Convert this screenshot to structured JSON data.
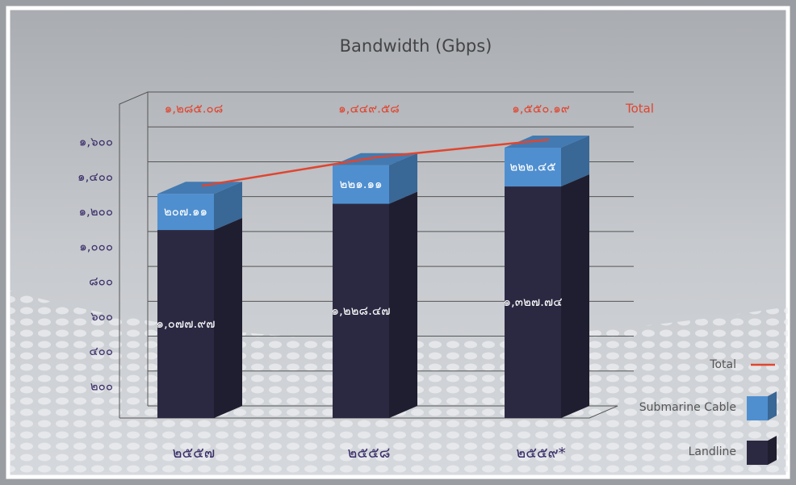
{
  "chart_data": {
    "type": "bar",
    "stacked": true,
    "title": "Bandwidth (Gbps)",
    "categories": [
      "๒๕๕๗",
      "๒๕๕๘",
      "๒๕๕๙*"
    ],
    "series": [
      {
        "name": "Landline",
        "color": "#2b2942",
        "values": [
          1077.97,
          1228.47,
          1327.74
        ],
        "value_labels": [
          "๑,๐๗๗.๙๗",
          "๑,๒๒๘.๔๗",
          "๑,๓๒๗.๗๔"
        ]
      },
      {
        "name": "Submarine Cable",
        "color": "#4f8fd0",
        "values": [
          207.11,
          221.11,
          222.45
        ],
        "value_labels": [
          "๒๐๗.๑๑",
          "๒๒๑.๑๑",
          "๒๒๒.๔๕"
        ]
      },
      {
        "name": "Total",
        "type": "line",
        "color": "#e0452f",
        "values": [
          1285.08,
          1449.58,
          1550.19
        ],
        "value_labels": [
          "๑,๒๘๕.๐๘",
          "๑,๔๔๙.๕๘",
          "๑,๕๕๐.๑๙"
        ]
      }
    ],
    "annotation": "Total",
    "ylim": [
      0,
      1800
    ],
    "yticks": [
      {
        "value": 200,
        "label": "๒๐๐"
      },
      {
        "value": 400,
        "label": "๔๐๐"
      },
      {
        "value": 600,
        "label": "๖๐๐"
      },
      {
        "value": 800,
        "label": "๘๐๐"
      },
      {
        "value": 1000,
        "label": "๑,๐๐๐"
      },
      {
        "value": 1200,
        "label": "๑,๒๐๐"
      },
      {
        "value": 1400,
        "label": "๑,๔๐๐"
      },
      {
        "value": 1600,
        "label": "๑,๖๐๐"
      }
    ],
    "grid": true,
    "legend": "bottom-right"
  }
}
